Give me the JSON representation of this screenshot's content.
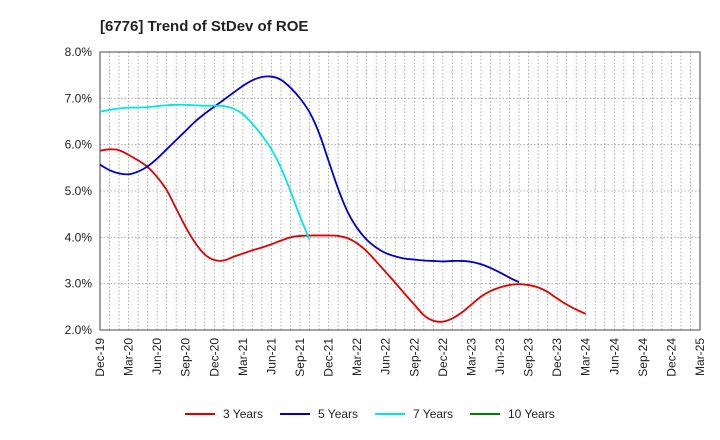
{
  "chart_data": {
    "type": "line",
    "title": "[6776]  Trend of StDev of ROE",
    "xlabel": "",
    "ylabel": "",
    "x_ticks": [
      "Dec-19",
      "Mar-20",
      "Jun-20",
      "Sep-20",
      "Dec-20",
      "Mar-21",
      "Jun-21",
      "Sep-21",
      "Dec-21",
      "Mar-22",
      "Jun-22",
      "Sep-22",
      "Dec-22",
      "Mar-23",
      "Jun-23",
      "Sep-23",
      "Dec-23",
      "Mar-24",
      "Jun-24",
      "Sep-24",
      "Dec-24",
      "Mar-25"
    ],
    "y_ticks": [
      "2.0%",
      "3.0%",
      "4.0%",
      "5.0%",
      "6.0%",
      "7.0%",
      "8.0%"
    ],
    "ylim": [
      2.0,
      8.0
    ],
    "grid": true,
    "legend_position": "bottom",
    "series": [
      {
        "name": "3 Years",
        "color": "#e00000",
        "points": [
          [
            "Dec-19",
            5.87
          ],
          [
            "Jan-20",
            5.9
          ],
          [
            "Feb-20",
            5.88
          ],
          [
            "Mar-20",
            5.78
          ],
          [
            "Apr-20",
            5.66
          ],
          [
            "May-20",
            5.52
          ],
          [
            "Jun-20",
            5.3
          ],
          [
            "Jul-20",
            5.02
          ],
          [
            "Aug-20",
            4.62
          ],
          [
            "Sep-20",
            4.22
          ],
          [
            "Oct-20",
            3.88
          ],
          [
            "Nov-20",
            3.63
          ],
          [
            "Dec-20",
            3.51
          ],
          [
            "Jan-21",
            3.5
          ],
          [
            "Feb-21",
            3.58
          ],
          [
            "Mar-21",
            3.65
          ],
          [
            "Apr-21",
            3.72
          ],
          [
            "May-21",
            3.78
          ],
          [
            "Jun-21",
            3.85
          ],
          [
            "Jul-21",
            3.93
          ],
          [
            "Aug-21",
            4.0
          ],
          [
            "Sep-21",
            4.03
          ],
          [
            "Oct-21",
            4.04
          ],
          [
            "Nov-21",
            4.04
          ],
          [
            "Dec-21",
            4.04
          ],
          [
            "Jan-22",
            4.03
          ],
          [
            "Feb-22",
            3.98
          ],
          [
            "Mar-22",
            3.87
          ],
          [
            "Apr-22",
            3.7
          ],
          [
            "May-22",
            3.48
          ],
          [
            "Jun-22",
            3.25
          ],
          [
            "Jul-22",
            3.02
          ],
          [
            "Aug-22",
            2.78
          ],
          [
            "Sep-22",
            2.55
          ],
          [
            "Oct-22",
            2.32
          ],
          [
            "Nov-22",
            2.2
          ],
          [
            "Dec-22",
            2.18
          ],
          [
            "Jan-23",
            2.25
          ],
          [
            "Feb-23",
            2.38
          ],
          [
            "Mar-23",
            2.55
          ],
          [
            "Apr-23",
            2.72
          ],
          [
            "May-23",
            2.84
          ],
          [
            "Jun-23",
            2.92
          ],
          [
            "Jul-23",
            2.97
          ],
          [
            "Aug-23",
            2.99
          ],
          [
            "Sep-23",
            2.97
          ],
          [
            "Oct-23",
            2.92
          ],
          [
            "Nov-23",
            2.82
          ],
          [
            "Dec-23",
            2.68
          ],
          [
            "Jan-24",
            2.55
          ],
          [
            "Feb-24",
            2.44
          ],
          [
            "Mar-24",
            2.35
          ]
        ]
      },
      {
        "name": "5 Years",
        "color": "#0000cc",
        "points": [
          [
            "Dec-19",
            5.57
          ],
          [
            "Jan-20",
            5.45
          ],
          [
            "Feb-20",
            5.38
          ],
          [
            "Mar-20",
            5.36
          ],
          [
            "Apr-20",
            5.42
          ],
          [
            "May-20",
            5.53
          ],
          [
            "Jun-20",
            5.7
          ],
          [
            "Jul-20",
            5.9
          ],
          [
            "Aug-20",
            6.1
          ],
          [
            "Sep-20",
            6.3
          ],
          [
            "Oct-20",
            6.5
          ],
          [
            "Nov-20",
            6.67
          ],
          [
            "Dec-20",
            6.82
          ],
          [
            "Jan-21",
            6.97
          ],
          [
            "Feb-21",
            7.12
          ],
          [
            "Mar-21",
            7.27
          ],
          [
            "Apr-21",
            7.39
          ],
          [
            "May-21",
            7.46
          ],
          [
            "Jun-21",
            7.47
          ],
          [
            "Jul-21",
            7.4
          ],
          [
            "Aug-21",
            7.23
          ],
          [
            "Sep-21",
            7.0
          ],
          [
            "Oct-21",
            6.7
          ],
          [
            "Nov-21",
            6.25
          ],
          [
            "Dec-21",
            5.65
          ],
          [
            "Jan-22",
            5.05
          ],
          [
            "Feb-22",
            4.55
          ],
          [
            "Mar-22",
            4.2
          ],
          [
            "Apr-22",
            3.95
          ],
          [
            "May-22",
            3.78
          ],
          [
            "Jun-22",
            3.66
          ],
          [
            "Jul-22",
            3.59
          ],
          [
            "Aug-22",
            3.54
          ],
          [
            "Sep-22",
            3.52
          ],
          [
            "Oct-22",
            3.5
          ],
          [
            "Nov-22",
            3.49
          ],
          [
            "Dec-22",
            3.48
          ],
          [
            "Jan-23",
            3.49
          ],
          [
            "Feb-23",
            3.49
          ],
          [
            "Mar-23",
            3.47
          ],
          [
            "Apr-23",
            3.42
          ],
          [
            "May-23",
            3.34
          ],
          [
            "Jun-23",
            3.24
          ],
          [
            "Jul-23",
            3.13
          ],
          [
            "Aug-23",
            3.03
          ]
        ]
      },
      {
        "name": "7 Years",
        "color": "#00e5e5",
        "points": [
          [
            "Dec-19",
            6.71
          ],
          [
            "Jan-20",
            6.75
          ],
          [
            "Feb-20",
            6.78
          ],
          [
            "Mar-20",
            6.8
          ],
          [
            "Apr-20",
            6.8
          ],
          [
            "May-20",
            6.81
          ],
          [
            "Jun-20",
            6.83
          ],
          [
            "Jul-20",
            6.85
          ],
          [
            "Aug-20",
            6.86
          ],
          [
            "Sep-20",
            6.86
          ],
          [
            "Oct-20",
            6.85
          ],
          [
            "Nov-20",
            6.84
          ],
          [
            "Dec-20",
            6.84
          ],
          [
            "Jan-21",
            6.83
          ],
          [
            "Feb-21",
            6.78
          ],
          [
            "Mar-21",
            6.66
          ],
          [
            "Apr-21",
            6.45
          ],
          [
            "May-21",
            6.2
          ],
          [
            "Jun-21",
            5.9
          ],
          [
            "Jul-21",
            5.5
          ],
          [
            "Aug-21",
            5.0
          ],
          [
            "Sep-21",
            4.45
          ],
          [
            "Oct-21",
            3.95
          ]
        ]
      },
      {
        "name": "10 Years",
        "color": "#008000",
        "points": []
      }
    ]
  }
}
